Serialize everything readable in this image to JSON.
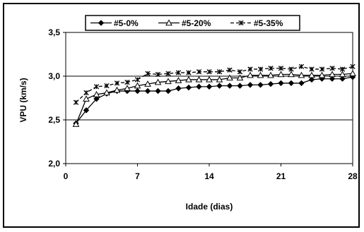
{
  "chart_data": {
    "type": "line",
    "xlabel": "Idade (dias)",
    "ylabel": "VPU (km/s)",
    "xlim": [
      0,
      28
    ],
    "ylim": [
      2.0,
      3.5
    ],
    "xticks": [
      0,
      7,
      14,
      21,
      28
    ],
    "yticks": [
      2.0,
      2.5,
      3.0,
      3.5
    ],
    "xtick_labels": [
      "0",
      "7",
      "14",
      "21",
      "28"
    ],
    "ytick_labels": [
      "2,0",
      "2,5",
      "3,0",
      "3,5"
    ],
    "grid": "horizontal major lines",
    "legend_position": "top",
    "series": [
      {
        "name": "#5-0%",
        "marker": "diamond",
        "dash": "solid",
        "color": "#000000",
        "x": [
          1,
          2,
          3,
          4,
          5,
          6,
          7,
          8,
          9,
          10,
          11,
          12,
          13,
          14,
          15,
          16,
          17,
          18,
          19,
          20,
          21,
          22,
          23,
          24,
          25,
          26,
          27,
          28
        ],
        "values": [
          2.46,
          2.61,
          2.74,
          2.8,
          2.83,
          2.83,
          2.83,
          2.83,
          2.83,
          2.83,
          2.86,
          2.87,
          2.88,
          2.88,
          2.89,
          2.89,
          2.89,
          2.9,
          2.9,
          2.91,
          2.92,
          2.92,
          2.92,
          2.96,
          2.97,
          2.97,
          2.97,
          2.99
        ]
      },
      {
        "name": "#5-20%",
        "marker": "triangle-open",
        "dash": "solid",
        "color": "#000000",
        "x": [
          1,
          2,
          3,
          4,
          5,
          6,
          7,
          8,
          9,
          10,
          11,
          12,
          13,
          14,
          15,
          16,
          17,
          18,
          19,
          20,
          21,
          22,
          23,
          24,
          25,
          26,
          27,
          28
        ],
        "values": [
          2.45,
          2.74,
          2.79,
          2.81,
          2.84,
          2.86,
          2.89,
          2.91,
          2.93,
          2.94,
          2.95,
          2.96,
          2.96,
          2.96,
          2.96,
          2.98,
          2.98,
          3.01,
          3.01,
          3.01,
          3.02,
          3.02,
          3.01,
          3.01,
          3.01,
          3.02,
          3.02,
          3.03
        ]
      },
      {
        "name": "#5-35%",
        "marker": "x-star",
        "dash": "dashed",
        "color": "#000000",
        "x": [
          1,
          2,
          3,
          4,
          5,
          6,
          7,
          8,
          9,
          10,
          11,
          12,
          13,
          14,
          15,
          16,
          17,
          18,
          19,
          20,
          21,
          22,
          23,
          24,
          25,
          26,
          27,
          28
        ],
        "values": [
          2.7,
          2.81,
          2.88,
          2.89,
          2.92,
          2.93,
          2.96,
          3.03,
          3.02,
          3.03,
          3.04,
          3.04,
          3.05,
          3.05,
          3.05,
          3.07,
          3.05,
          3.08,
          3.08,
          3.09,
          3.09,
          3.08,
          3.11,
          3.08,
          3.08,
          3.09,
          3.08,
          3.11
        ]
      }
    ]
  }
}
